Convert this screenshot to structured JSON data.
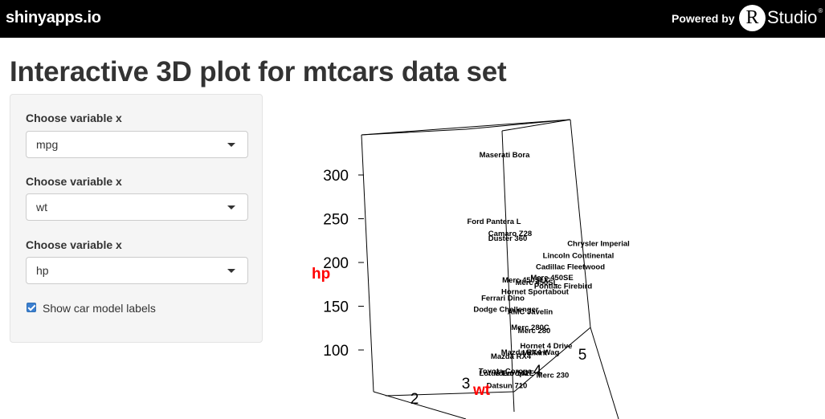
{
  "header": {
    "brand": "shinyapps.io",
    "powered_by": "Powered by",
    "r_letter": "R",
    "studio": "Studio",
    "trademark": "®"
  },
  "page": {
    "title": "Interactive 3D plot for mtcars data set"
  },
  "sidebar": {
    "x_select": {
      "label": "Choose variable x",
      "value": "mpg"
    },
    "y_select": {
      "label": "Choose variable x",
      "value": "wt"
    },
    "z_select": {
      "label": "Choose variable x",
      "value": "hp"
    },
    "labels_checkbox": {
      "label": "Show car model labels",
      "checked": true
    }
  },
  "colors": {
    "topbar": "#000000",
    "axis_label": "#ff0000",
    "panel": "#f5f5f5",
    "checkbox": "#3b7fd0"
  },
  "chart_data": {
    "type": "scatter",
    "title": "",
    "xlabel": "",
    "ylabel": "wt",
    "zlabel": "hp",
    "z_ticks": [
      100,
      150,
      200,
      250,
      300
    ],
    "y_ticks": [
      2,
      3,
      4,
      5
    ],
    "zlim": [
      52,
      335
    ],
    "points": [
      {
        "label": "Maserati Bora",
        "hp": 335
      },
      {
        "label": "Ford Pantera L",
        "hp": 264
      },
      {
        "label": "Camaro Z28",
        "hp": 245
      },
      {
        "label": "Duster 360",
        "hp": 245
      },
      {
        "label": "Chrysler Imperial",
        "hp": 230
      },
      {
        "label": "Lincoln Continental",
        "hp": 215
      },
      {
        "label": "Cadillac Fleetwood",
        "hp": 205
      },
      {
        "label": "Merc 450SE",
        "hp": 180
      },
      {
        "label": "Merc 450SL",
        "hp": 180
      },
      {
        "label": "Merc 450SLC",
        "hp": 180
      },
      {
        "label": "Pontiac Firebird",
        "hp": 175
      },
      {
        "label": "Hornet Sportabout",
        "hp": 175
      },
      {
        "label": "Ferrari Dino",
        "hp": 175
      },
      {
        "label": "AMC Javelin",
        "hp": 150
      },
      {
        "label": "Dodge Challenger",
        "hp": 150
      },
      {
        "label": "Merc 280C",
        "hp": 123
      },
      {
        "label": "Merc 280",
        "hp": 123
      },
      {
        "label": "Valiant",
        "hp": 105
      },
      {
        "label": "Hornet 4 Drive",
        "hp": 110
      },
      {
        "label": "Mazda RX4 Wag",
        "hp": 110
      },
      {
        "label": "Mazda RX4",
        "hp": 110
      },
      {
        "label": "Merc 230",
        "hp": 95
      },
      {
        "label": "Toyota Corona",
        "hp": 97
      },
      {
        "label": "Datsun 710",
        "hp": 93
      },
      {
        "label": "Volvo 142E",
        "hp": 109
      },
      {
        "label": "Lotus Europa",
        "hp": 113
      },
      {
        "label": "Merc 240D",
        "hp": 62
      },
      {
        "label": "Fiat X1-9",
        "hp": 66
      },
      {
        "label": "Fiat 128",
        "hp": 66
      }
    ]
  }
}
